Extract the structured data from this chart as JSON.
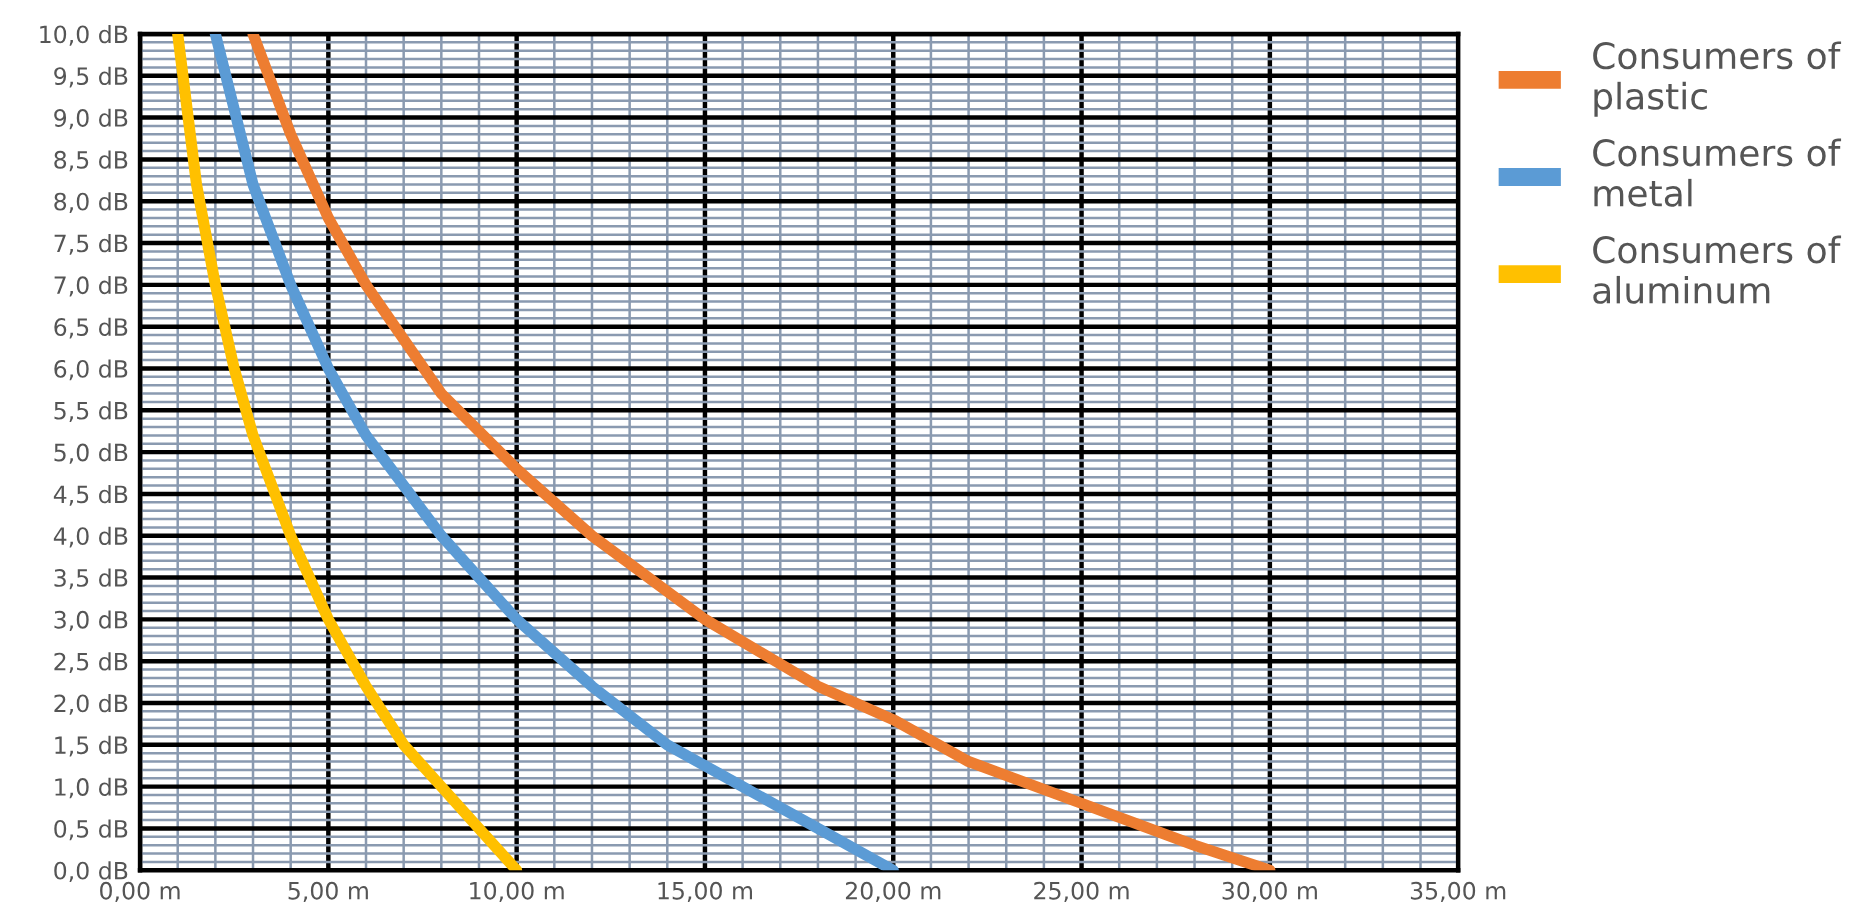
{
  "chart_data": {
    "type": "line",
    "series": [
      {
        "name": "Consumers of\nplastic",
        "color": "#ed7d31",
        "x": [
          3,
          4,
          5,
          6,
          8,
          10,
          12,
          15,
          18,
          20,
          22,
          25,
          28,
          30
        ],
        "values": [
          10,
          8.8,
          7.8,
          7.0,
          5.7,
          4.8,
          4.0,
          3.0,
          2.2,
          1.8,
          1.3,
          0.8,
          0.3,
          0
        ]
      },
      {
        "name": "Consumers of\nmetal",
        "color": "#5b9bd5",
        "x": [
          2,
          3,
          4,
          5,
          6,
          8,
          10,
          12,
          14,
          16,
          18,
          20
        ],
        "values": [
          10,
          8.2,
          7.0,
          6.0,
          5.2,
          4.0,
          3.0,
          2.2,
          1.5,
          1.0,
          0.5,
          0
        ]
      },
      {
        "name": "Consumers of\naluminum",
        "color": "#ffc000",
        "x": [
          1,
          1.5,
          2,
          2.5,
          3,
          4,
          5,
          6,
          7,
          8,
          9,
          10
        ],
        "values": [
          10,
          8.2,
          7.0,
          6.0,
          5.2,
          4.0,
          3.0,
          2.2,
          1.5,
          1.0,
          0.5,
          0
        ]
      }
    ],
    "xlim": [
      0,
      35
    ],
    "xticks": [
      {
        "value": 0,
        "label": "0,00 m"
      },
      {
        "value": 5,
        "label": "5,00 m"
      },
      {
        "value": 10,
        "label": "10,00 m"
      },
      {
        "value": 15,
        "label": "15,00 m"
      },
      {
        "value": 20,
        "label": "20,00 m"
      },
      {
        "value": 25,
        "label": "25,00 m"
      },
      {
        "value": 30,
        "label": "30,00 m"
      },
      {
        "value": 35,
        "label": "35,00 m"
      }
    ],
    "ylim": [
      0,
      10
    ],
    "yticks": [
      {
        "value": 0,
        "label": "0,0 dB"
      },
      {
        "value": 0.5,
        "label": "0,5 dB"
      },
      {
        "value": 1,
        "label": "1,0 dB"
      },
      {
        "value": 1.5,
        "label": "1,5 dB"
      },
      {
        "value": 2,
        "label": "2,0 dB"
      },
      {
        "value": 2.5,
        "label": "2,5 dB"
      },
      {
        "value": 3,
        "label": "3,0 dB"
      },
      {
        "value": 3.5,
        "label": "3,5 dB"
      },
      {
        "value": 4,
        "label": "4,0 dB"
      },
      {
        "value": 4.5,
        "label": "4,5 dB"
      },
      {
        "value": 5,
        "label": "5,0 dB"
      },
      {
        "value": 5.5,
        "label": "5,5 dB"
      },
      {
        "value": 6,
        "label": "6,0 dB"
      },
      {
        "value": 6.5,
        "label": "6,5 dB"
      },
      {
        "value": 7,
        "label": "7,0 dB"
      },
      {
        "value": 7.5,
        "label": "7,5 dB"
      },
      {
        "value": 8,
        "label": "8,0 dB"
      },
      {
        "value": 8.5,
        "label": "8,5 dB"
      },
      {
        "value": 9,
        "label": "9,0 dB"
      },
      {
        "value": 9.5,
        "label": "9,5 dB"
      },
      {
        "value": 10,
        "label": "10,0 dB"
      }
    ],
    "grid": true,
    "legend": "right",
    "marker": "none",
    "line_style": "solid"
  }
}
